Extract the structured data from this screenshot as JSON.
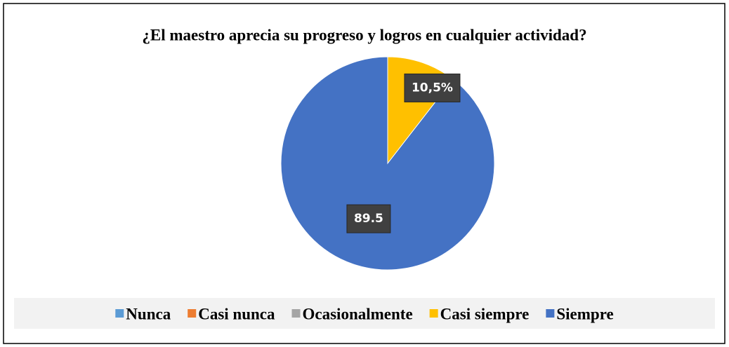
{
  "chart_data": {
    "type": "pie",
    "title": "¿El maestro aprecia su progreso y logros en cualquier actividad?",
    "categories": [
      "Nunca",
      "Casi nunca",
      "Ocasionalmente",
      "Casi siempre",
      "Siempre"
    ],
    "values": [
      0,
      0,
      0,
      10.5,
      89.5
    ],
    "value_labels": [
      null,
      null,
      null,
      "10,5%",
      "89.5"
    ],
    "colors": [
      "#5b9bd5",
      "#ed7d31",
      "#a5a5a5",
      "#ffc000",
      "#4472c4"
    ],
    "legend": "bottom"
  }
}
